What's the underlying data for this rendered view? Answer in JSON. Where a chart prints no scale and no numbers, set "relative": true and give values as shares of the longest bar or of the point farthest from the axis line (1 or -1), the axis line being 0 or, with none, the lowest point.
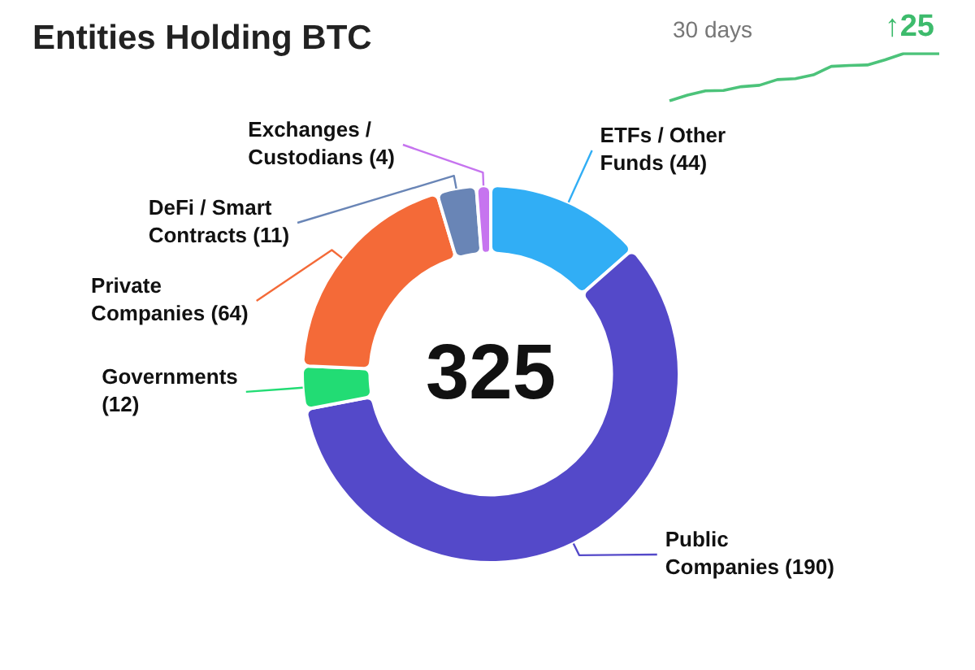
{
  "chart_data": [
    {
      "type": "donut",
      "title": "Entities Holding BTC",
      "categories": [
        "ETFs / Other Funds",
        "Public Companies",
        "Governments",
        "Private Companies",
        "DeFi / Smart Contracts",
        "Exchanges / Custodians"
      ],
      "values": [
        44,
        190,
        12,
        64,
        11,
        4
      ],
      "value_labels": [
        "(44)",
        "(190)",
        "(12)",
        "(64)",
        "(11)",
        "(4)"
      ],
      "colors": [
        "#31aef5",
        "#5449c9",
        "#22dc74",
        "#f46a38",
        "#6985b6",
        "#c674ef"
      ],
      "annotations": [
        "325"
      ]
    },
    {
      "type": "line",
      "title": "30 days",
      "annotations": [
        "↑25"
      ],
      "categories": [
        null,
        null,
        null,
        null,
        null,
        null,
        null,
        null,
        null,
        null,
        null,
        null,
        null,
        null,
        null,
        null
      ],
      "values": [
        0,
        0.12,
        0.21,
        0.22,
        0.3,
        0.33,
        0.45,
        0.47,
        0.55,
        0.73,
        0.75,
        0.76,
        0.87,
        1,
        1,
        1
      ],
      "color": "#4cc37a",
      "relative": true
    }
  ]
}
